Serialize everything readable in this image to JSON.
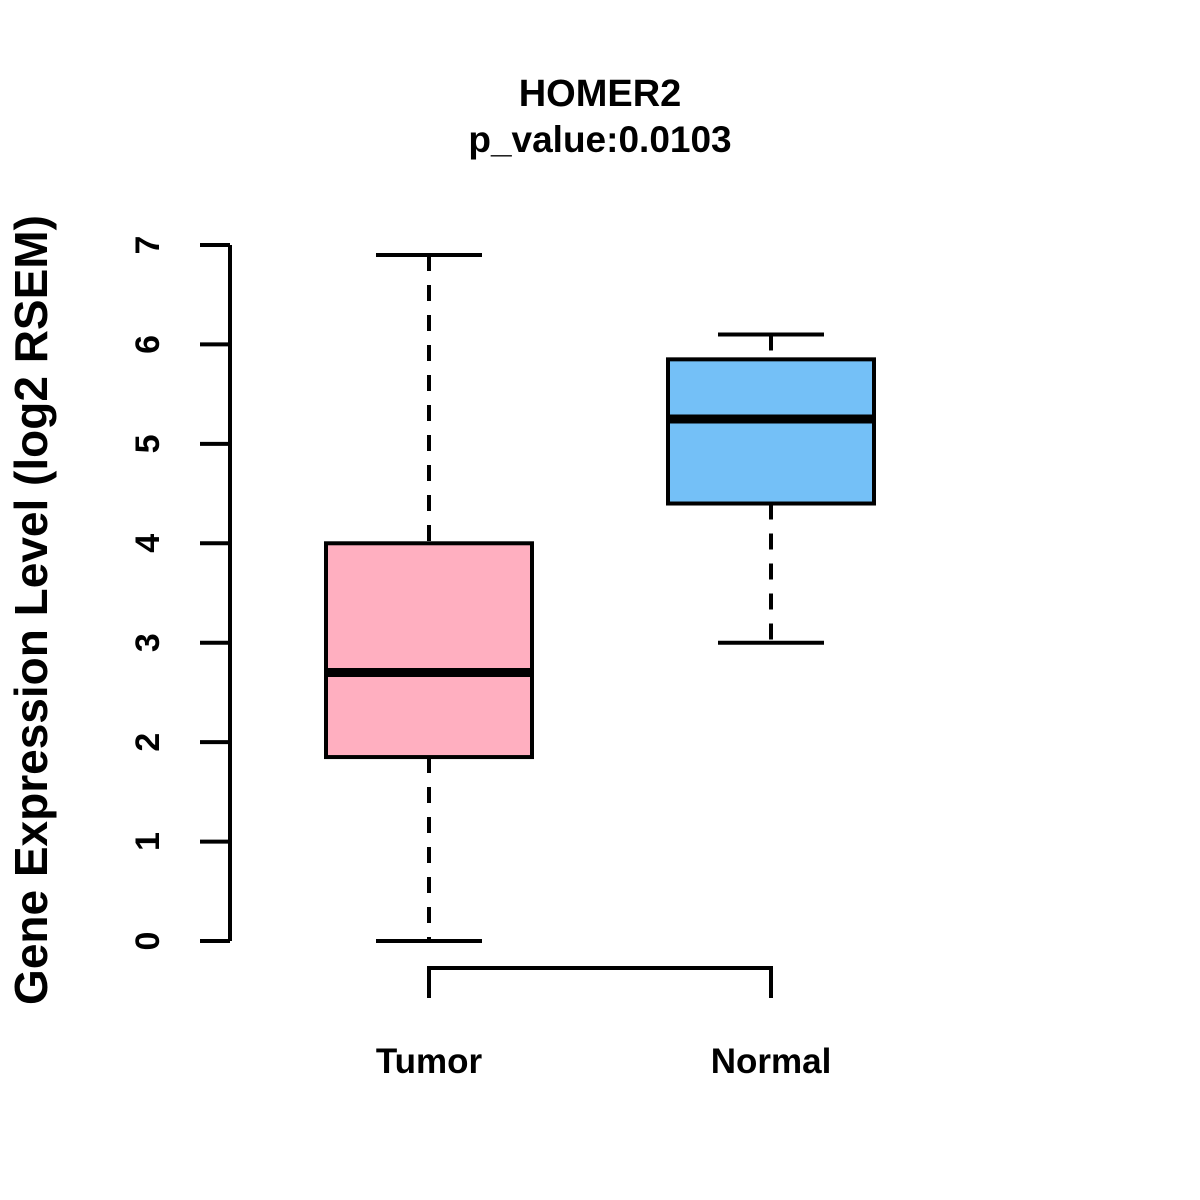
{
  "chart_data": {
    "type": "boxplot",
    "title": "HOMER2",
    "subtitle": "p_value:0.0103",
    "ylabel": "Gene Expression Level (log2 RSEM)",
    "xlabel": "",
    "ylim": [
      0,
      7
    ],
    "yticks": [
      0,
      1,
      2,
      3,
      4,
      5,
      6,
      7
    ],
    "grid": false,
    "legend": "none",
    "colors": {
      "background": "#FFFFFF",
      "line": "#000000",
      "text": "#000000",
      "tumor_fill": "#FFAFC0",
      "normal_fill": "#74C0F7"
    },
    "groups": [
      {
        "label": "Tumor",
        "fill_color": "#FFAFC0",
        "whisker_low": 0.0,
        "q1": 1.85,
        "median": 2.7,
        "q3": 4.0,
        "whisker_high": 6.9
      },
      {
        "label": "Normal",
        "fill_color": "#74C0F7",
        "whisker_low": 3.0,
        "q1": 4.4,
        "median": 5.25,
        "q3": 5.85,
        "whisker_high": 6.1
      }
    ]
  }
}
